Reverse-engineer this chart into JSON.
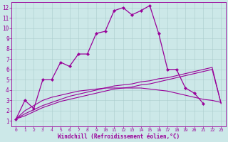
{
  "bg_color": "#cce8e8",
  "line_color": "#990099",
  "grid_color": "#aacccc",
  "xlabel": "Windchill (Refroidissement éolien,°C)",
  "xlim": [
    -0.5,
    23.5
  ],
  "ylim": [
    0.5,
    12.5
  ],
  "xticks": [
    0,
    1,
    2,
    3,
    4,
    5,
    6,
    7,
    8,
    9,
    10,
    11,
    12,
    13,
    14,
    15,
    16,
    17,
    18,
    19,
    20,
    21,
    22,
    23
  ],
  "yticks": [
    1,
    2,
    3,
    4,
    5,
    6,
    7,
    8,
    9,
    10,
    11,
    12
  ],
  "series_main": {
    "x": [
      0,
      1,
      2,
      3,
      4,
      5,
      6,
      7,
      8,
      9,
      10,
      11,
      12,
      13,
      14,
      15,
      16,
      17,
      18,
      19,
      20,
      21
    ],
    "y": [
      1.2,
      3.0,
      2.2,
      5.0,
      5.0,
      6.7,
      6.3,
      7.5,
      7.5,
      9.5,
      9.7,
      11.7,
      12.0,
      11.3,
      11.7,
      12.2,
      9.5,
      6.0,
      6.0,
      4.2,
      3.7,
      2.7
    ]
  },
  "series_curve1": {
    "x": [
      0,
      1,
      2,
      3,
      4,
      5,
      6,
      7,
      8,
      9,
      10,
      11,
      12,
      13,
      14,
      15,
      16,
      17,
      18,
      19,
      20,
      21,
      22,
      23
    ],
    "y": [
      1.2,
      2.0,
      2.5,
      3.0,
      3.3,
      3.5,
      3.7,
      3.9,
      4.0,
      4.1,
      4.2,
      4.2,
      4.2,
      4.2,
      4.2,
      4.1,
      4.0,
      3.9,
      3.7,
      3.5,
      3.3,
      3.1,
      3.0,
      2.8
    ]
  },
  "series_curve2": {
    "x": [
      0,
      1,
      2,
      3,
      4,
      5,
      6,
      7,
      8,
      9,
      10,
      11,
      12,
      13,
      14,
      15,
      16,
      17,
      18,
      19,
      20,
      21,
      22,
      23
    ],
    "y": [
      1.2,
      1.7,
      2.1,
      2.5,
      2.8,
      3.1,
      3.4,
      3.6,
      3.8,
      4.0,
      4.2,
      4.4,
      4.5,
      4.6,
      4.8,
      4.9,
      5.1,
      5.2,
      5.4,
      5.6,
      5.8,
      6.0,
      6.2,
      2.7
    ]
  },
  "series_curve3": {
    "x": [
      0,
      1,
      2,
      3,
      4,
      5,
      6,
      7,
      8,
      9,
      10,
      11,
      12,
      13,
      14,
      15,
      16,
      17,
      18,
      19,
      20,
      21,
      22,
      23
    ],
    "y": [
      1.2,
      1.5,
      1.9,
      2.3,
      2.6,
      2.9,
      3.1,
      3.3,
      3.5,
      3.7,
      3.9,
      4.1,
      4.2,
      4.3,
      4.5,
      4.6,
      4.8,
      5.0,
      5.2,
      5.4,
      5.6,
      5.8,
      6.0,
      2.7
    ]
  }
}
